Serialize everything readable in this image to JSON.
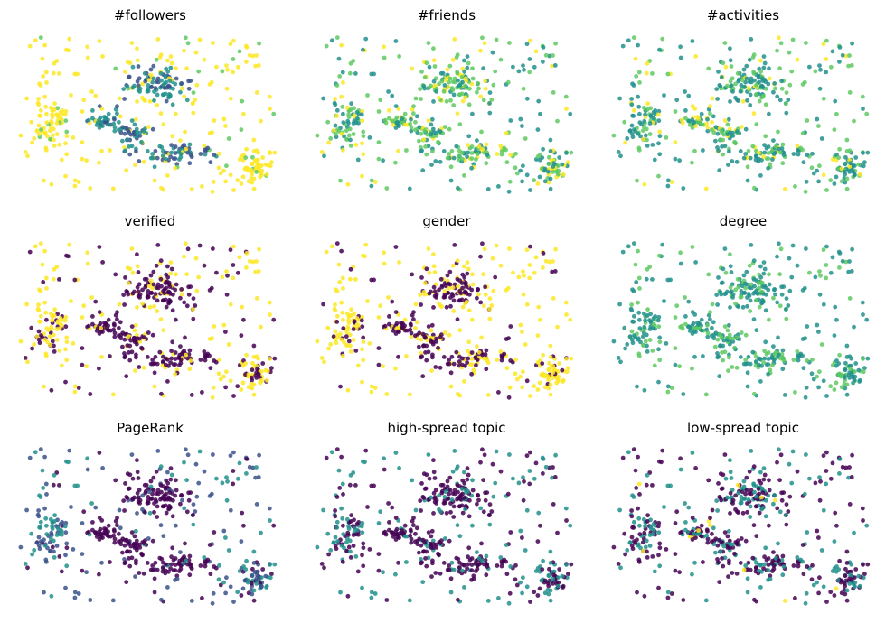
{
  "figure": {
    "type": "scatter-small-multiples",
    "axes_visible": false,
    "grid": false,
    "legend": "none",
    "colormap": "viridis",
    "colormap_stops": [
      "#440154",
      "#3b528b",
      "#21918c",
      "#5ec962",
      "#fde725"
    ],
    "marker_opacity": 0.85
  },
  "chart_data": [
    {
      "type": "scatter",
      "title": "#followers",
      "color_mode": "mostly high",
      "color_seed": 11
    },
    {
      "type": "scatter",
      "title": "#friends",
      "color_mode": "green-teal",
      "color_seed": 12
    },
    {
      "type": "scatter",
      "title": "#activities",
      "color_mode": "teal-green",
      "color_seed": 13
    },
    {
      "type": "scatter",
      "title": "verified",
      "color_mode": "binary",
      "color_seed": 14
    },
    {
      "type": "scatter",
      "title": "gender",
      "color_mode": "binary-yellow",
      "color_seed": 15
    },
    {
      "type": "scatter",
      "title": "degree",
      "color_mode": "teal",
      "color_seed": 16
    },
    {
      "type": "scatter",
      "title": "PageRank",
      "color_mode": "low-mixed",
      "color_seed": 17
    },
    {
      "type": "scatter",
      "title": "high-spread topic",
      "color_mode": "dark-teal",
      "color_seed": 18
    },
    {
      "type": "scatter",
      "title": "low-spread topic",
      "color_mode": "dark-teal-some",
      "color_seed": 19
    }
  ]
}
